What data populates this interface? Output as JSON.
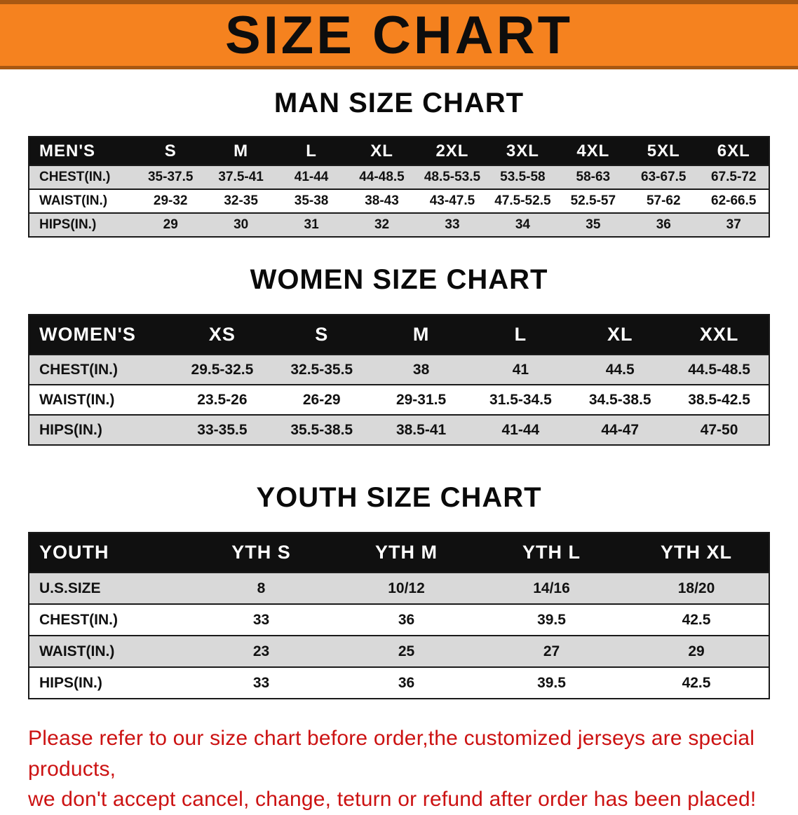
{
  "banner": {
    "title": "SIZE CHART",
    "bg_color": "#f5821f",
    "text_color": "#0d0d0d"
  },
  "sections": [
    {
      "title": "MAN SIZE CHART",
      "header_label": "MEN'S",
      "columns": [
        "S",
        "M",
        "L",
        "XL",
        "2XL",
        "3XL",
        "4XL",
        "5XL",
        "6XL"
      ],
      "rows": [
        {
          "label": "CHEST(IN.)",
          "values": [
            "35-37.5",
            "37.5-41",
            "41-44",
            "44-48.5",
            "48.5-53.5",
            "53.5-58",
            "58-63",
            "63-67.5",
            "67.5-72"
          ]
        },
        {
          "label": "WAIST(IN.)",
          "values": [
            "29-32",
            "32-35",
            "35-38",
            "38-43",
            "43-47.5",
            "47.5-52.5",
            "52.5-57",
            "57-62",
            "62-66.5"
          ]
        },
        {
          "label": "HIPS(IN.)",
          "values": [
            "29",
            "30",
            "31",
            "32",
            "33",
            "34",
            "35",
            "36",
            "37"
          ]
        }
      ]
    },
    {
      "title": "WOMEN SIZE CHART",
      "header_label": "WOMEN'S",
      "columns": [
        "XS",
        "S",
        "M",
        "L",
        "XL",
        "XXL"
      ],
      "rows": [
        {
          "label": "CHEST(IN.)",
          "values": [
            "29.5-32.5",
            "32.5-35.5",
            "38",
            "41",
            "44.5",
            "44.5-48.5"
          ]
        },
        {
          "label": "WAIST(IN.)",
          "values": [
            "23.5-26",
            "26-29",
            "29-31.5",
            "31.5-34.5",
            "34.5-38.5",
            "38.5-42.5"
          ]
        },
        {
          "label": "HIPS(IN.)",
          "values": [
            "33-35.5",
            "35.5-38.5",
            "38.5-41",
            "41-44",
            "44-47",
            "47-50"
          ]
        }
      ]
    },
    {
      "title": "YOUTH SIZE CHART",
      "header_label": "YOUTH",
      "columns": [
        "YTH S",
        "YTH M",
        "YTH L",
        "YTH XL"
      ],
      "rows": [
        {
          "label": "U.S.SIZE",
          "values": [
            "8",
            "10/12",
            "14/16",
            "18/20"
          ]
        },
        {
          "label": "CHEST(IN.)",
          "values": [
            "33",
            "36",
            "39.5",
            "42.5"
          ]
        },
        {
          "label": "WAIST(IN.)",
          "values": [
            "23",
            "25",
            "27",
            "29"
          ]
        },
        {
          "label": "HIPS(IN.)",
          "values": [
            "33",
            "36",
            "39.5",
            "42.5"
          ]
        }
      ]
    }
  ],
  "footer": {
    "line1": "Please refer to our size chart before order,the customized jerseys are special products,",
    "line2": "we don't accept cancel, change, teturn or refund after order has been placed!",
    "text_color": "#cc1212"
  }
}
